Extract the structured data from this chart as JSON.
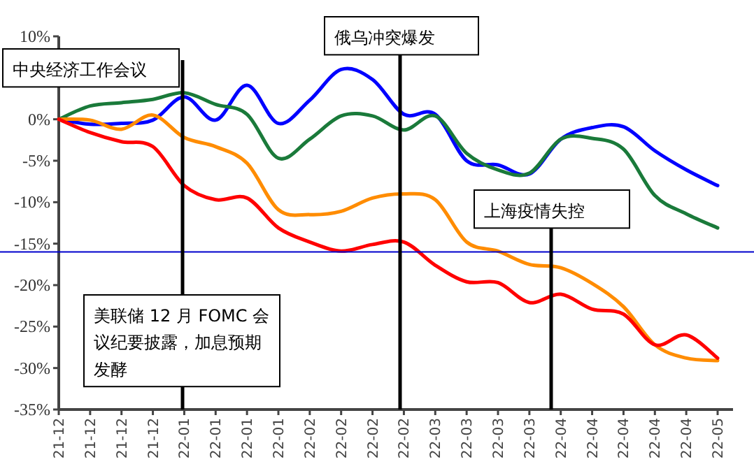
{
  "chart_data": {
    "type": "line",
    "categories": [
      "21-12",
      "21-12",
      "21-12",
      "21-12",
      "22-01",
      "22-01",
      "22-01",
      "22-01",
      "22-02",
      "22-02",
      "22-02",
      "22-02",
      "22-03",
      "22-03",
      "22-03",
      "22-03",
      "22-04",
      "22-04",
      "22-04",
      "22-04",
      "22-04",
      "22-05"
    ],
    "series": [
      {
        "color": "#0000ff",
        "values": [
          0,
          -0.6,
          -0.5,
          -0.1,
          2.7,
          -0.1,
          4.1,
          -0.5,
          2.3,
          6.0,
          4.8,
          0.6,
          0.6,
          -5.0,
          -5.5,
          -6.6,
          -2.4,
          -1.0,
          -0.9,
          -3.8,
          -6.1,
          -8.0
        ]
      },
      {
        "color": "#1a7a3a",
        "values": [
          0,
          1.6,
          2.0,
          2.4,
          3.2,
          1.8,
          0.6,
          -4.7,
          -2.4,
          0.4,
          0.4,
          -1.3,
          0.4,
          -4.1,
          -6.1,
          -6.5,
          -2.4,
          -2.3,
          -3.6,
          -9.2,
          -11.4,
          -13.1
        ]
      },
      {
        "color": "#ff8c00",
        "values": [
          0,
          -0.1,
          -1.2,
          0.5,
          -2.2,
          -3.3,
          -5.3,
          -10.9,
          -11.5,
          -11.1,
          -9.5,
          -9.0,
          -9.7,
          -14.8,
          -15.9,
          -17.5,
          -17.9,
          -19.8,
          -22.6,
          -27.2,
          -28.8,
          -29.1
        ]
      },
      {
        "color": "#ff0000",
        "values": [
          0,
          -1.6,
          -2.7,
          -3.3,
          -8.0,
          -9.7,
          -9.5,
          -13.1,
          -14.8,
          -15.9,
          -15.1,
          -14.8,
          -17.6,
          -19.6,
          -19.7,
          -22.1,
          -21.1,
          -22.9,
          -23.5,
          -27.2,
          -26.0,
          -28.8
        ]
      }
    ],
    "ylim": [
      -35,
      10
    ],
    "yticks": [
      {
        "value": -35,
        "label": "-35%"
      },
      {
        "value": -30,
        "label": "-30%"
      },
      {
        "value": -25,
        "label": "-25%"
      },
      {
        "value": -20,
        "label": "-20%"
      },
      {
        "value": -15,
        "label": "-15%"
      },
      {
        "value": -10,
        "label": "-10%"
      },
      {
        "value": -5,
        "label": "-5%"
      },
      {
        "value": 0,
        "label": "0%"
      },
      {
        "value": 5,
        "label": null
      },
      {
        "value": 10,
        "label": "10%"
      }
    ],
    "ref_lines": [
      {
        "axis": "y",
        "value": -16,
        "color": "#0000cc"
      }
    ],
    "annotations": [
      "中央经济工作会议",
      "俄乌冲突爆发",
      "上海疫情失控",
      "美联储 12 月 FOMC 会议纪要披露，加息预期发酵"
    ]
  }
}
